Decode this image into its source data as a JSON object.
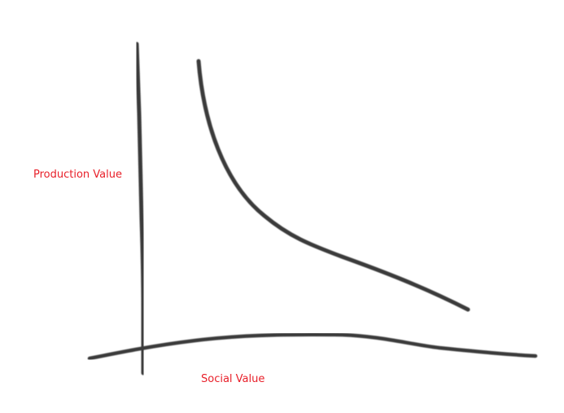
{
  "diagram": {
    "y_axis_label": "Production Value",
    "x_axis_label": "Social Value",
    "colors": {
      "label": "#e8202a",
      "stroke": "#3a3a3a",
      "background": "#ffffff"
    }
  }
}
